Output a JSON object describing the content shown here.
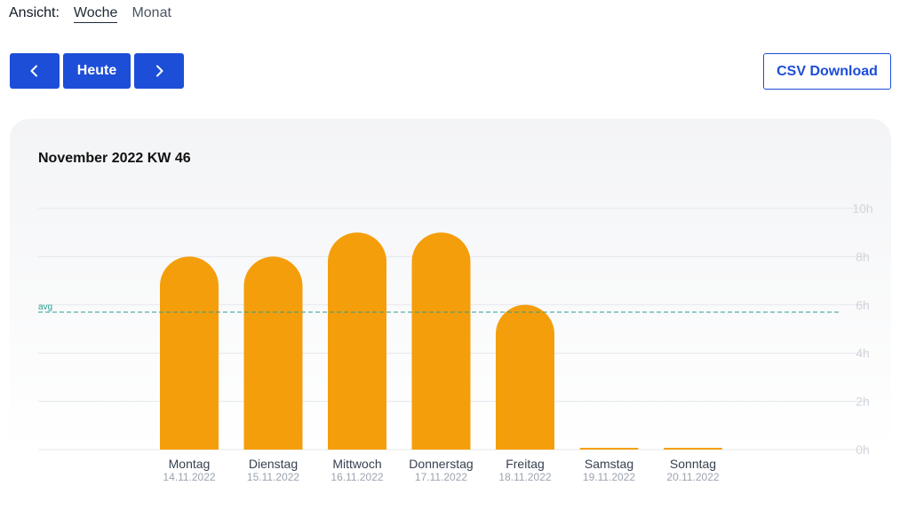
{
  "view_switch": {
    "label": "Ansicht:",
    "options": [
      "Woche",
      "Monat"
    ],
    "selected": "Woche"
  },
  "nav": {
    "prev_icon": "chevron-left-icon",
    "today_label": "Heute",
    "next_icon": "chevron-right-icon"
  },
  "csv_label": "CSV Download",
  "colors": {
    "accent": "#1d4ed8",
    "bar": "#f59e0b",
    "avg_line": "#2a9d8f"
  },
  "chart_data": {
    "type": "bar",
    "title": "November 2022 KW 46",
    "categories": [
      "Montag",
      "Dienstag",
      "Mittwoch",
      "Donnerstag",
      "Freitag",
      "Samstag",
      "Sonntag"
    ],
    "dates": [
      "14.11.2022",
      "15.11.2022",
      "16.11.2022",
      "17.11.2022",
      "18.11.2022",
      "19.11.2022",
      "20.11.2022"
    ],
    "values": [
      8,
      8,
      9,
      9,
      6,
      0,
      0
    ],
    "ylim": [
      0,
      10
    ],
    "yticks": [
      "0h",
      "2h",
      "4h",
      "6h",
      "8h",
      "10h"
    ],
    "average": {
      "label": "avg",
      "value": 5.7
    },
    "grid": true
  }
}
